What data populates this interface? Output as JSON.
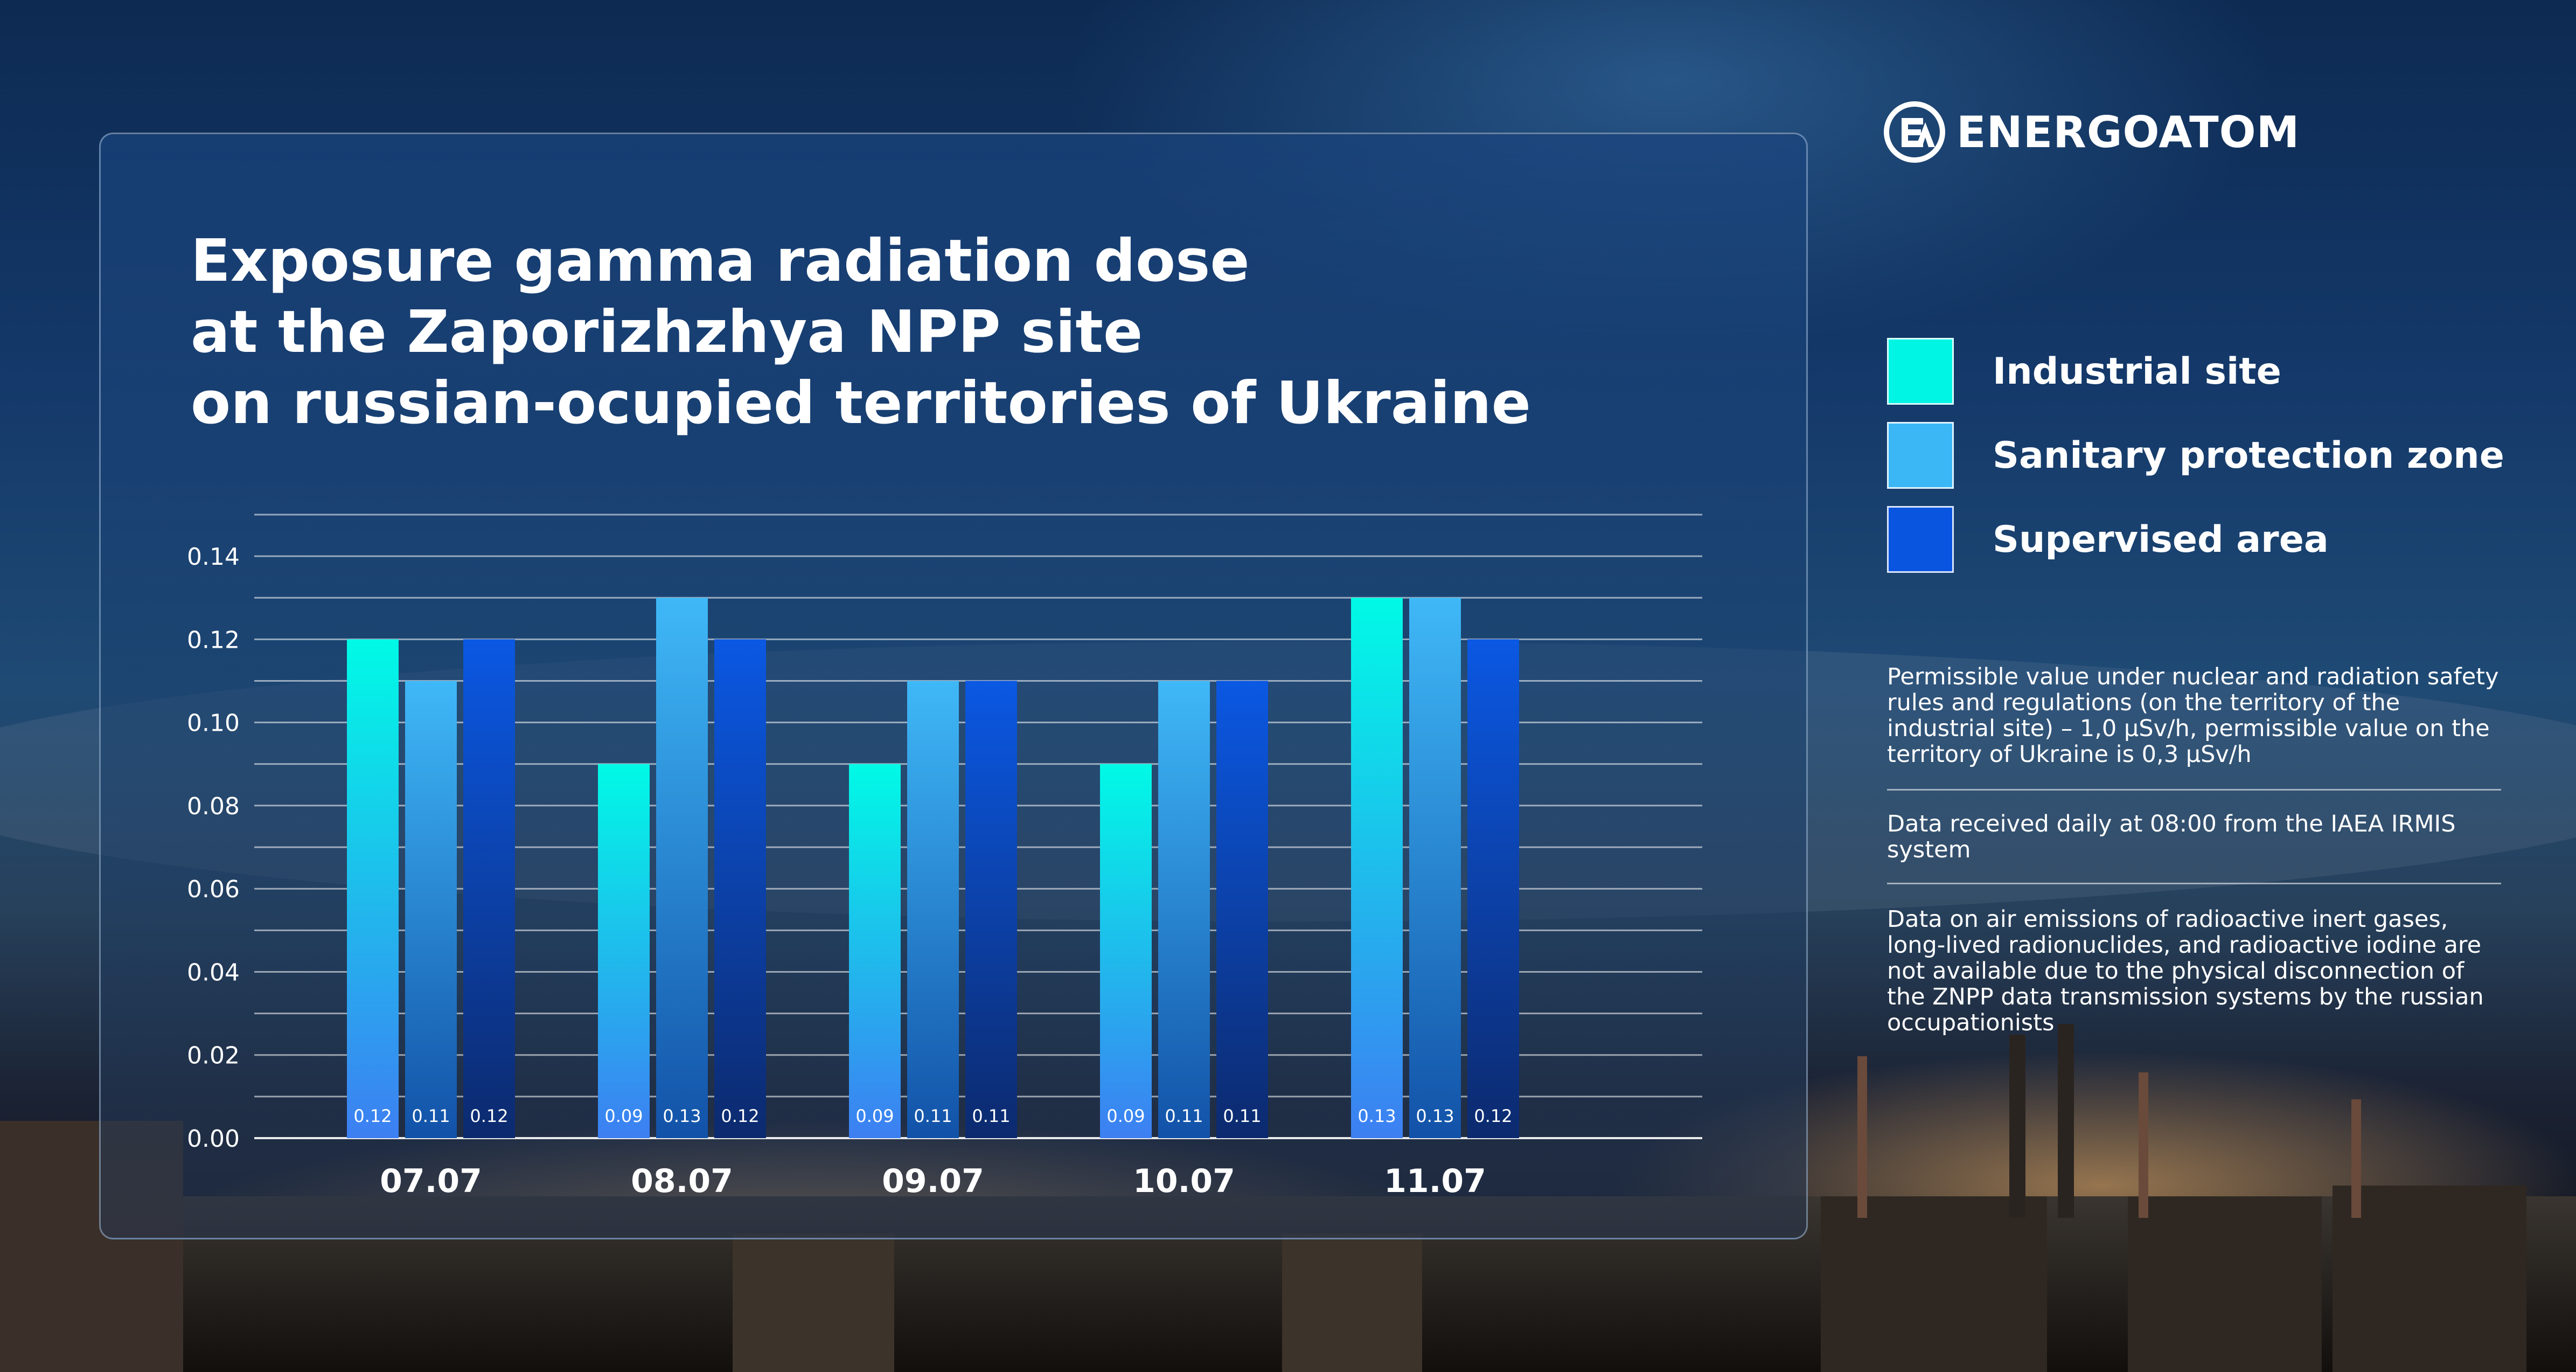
{
  "brand": {
    "name": "ENERGOATOM"
  },
  "title_lines": [
    "Exposure gamma radiation dose",
    "at the Zaporizhzhya NPP site",
    "on russian-ocupied territories of Ukraine"
  ],
  "legend": [
    {
      "label": "Industrial site",
      "color": "#00f5e4"
    },
    {
      "label": "Sanitary protection zone",
      "color": "#3bb7f5"
    },
    {
      "label": "Supervised area",
      "color": "#0a55e0"
    }
  ],
  "notes": [
    "Permissible value under nuclear and radiation safety rules and regulations (on the territory of the industrial site) – 1,0 μSv/h, permissible value on the territory of Ukraine is 0,3 μSv/h",
    "Data received daily at 08:00 from the IAEA IRMIS system",
    "Data on air emissions of radioactive inert gases, long-lived radionuclides, and radioactive iodine are not available due to the physical disconnection of the ZNPP data transmission systems by the russian occupationists"
  ],
  "chart_data": {
    "type": "bar",
    "title": "Exposure gamma radiation dose at the Zaporizhzhya NPP site on russian-ocupied territories of Ukraine",
    "categories": [
      "07.07",
      "08.07",
      "09.07",
      "10.07",
      "11.07"
    ],
    "series": [
      {
        "name": "Industrial site",
        "values": [
          0.12,
          0.09,
          0.09,
          0.09,
          0.13
        ],
        "color": "#00f5e4"
      },
      {
        "name": "Sanitary protection zone",
        "values": [
          0.11,
          0.13,
          0.11,
          0.11,
          0.13
        ],
        "color": "#3bb7f5"
      },
      {
        "name": "Supervised area",
        "values": [
          0.12,
          0.12,
          0.11,
          0.11,
          0.12
        ],
        "color": "#0a55e0"
      }
    ],
    "data_labels": [
      [
        "0.12",
        "0.11",
        "0.12"
      ],
      [
        "0.09",
        "0.13",
        "0.12"
      ],
      [
        "0.09",
        "0.11",
        "0.11"
      ],
      [
        "0.09",
        "0.11",
        "0.11"
      ],
      [
        "0.13",
        "0.13",
        "0.12"
      ]
    ],
    "yticks": [
      "0.00",
      "0.02",
      "0.04",
      "0.06",
      "0.08",
      "0.10",
      "0.12",
      "0.14"
    ],
    "ylim": [
      0,
      0.15
    ],
    "xlabel": "",
    "ylabel": "",
    "grid": true,
    "legend": "right"
  }
}
